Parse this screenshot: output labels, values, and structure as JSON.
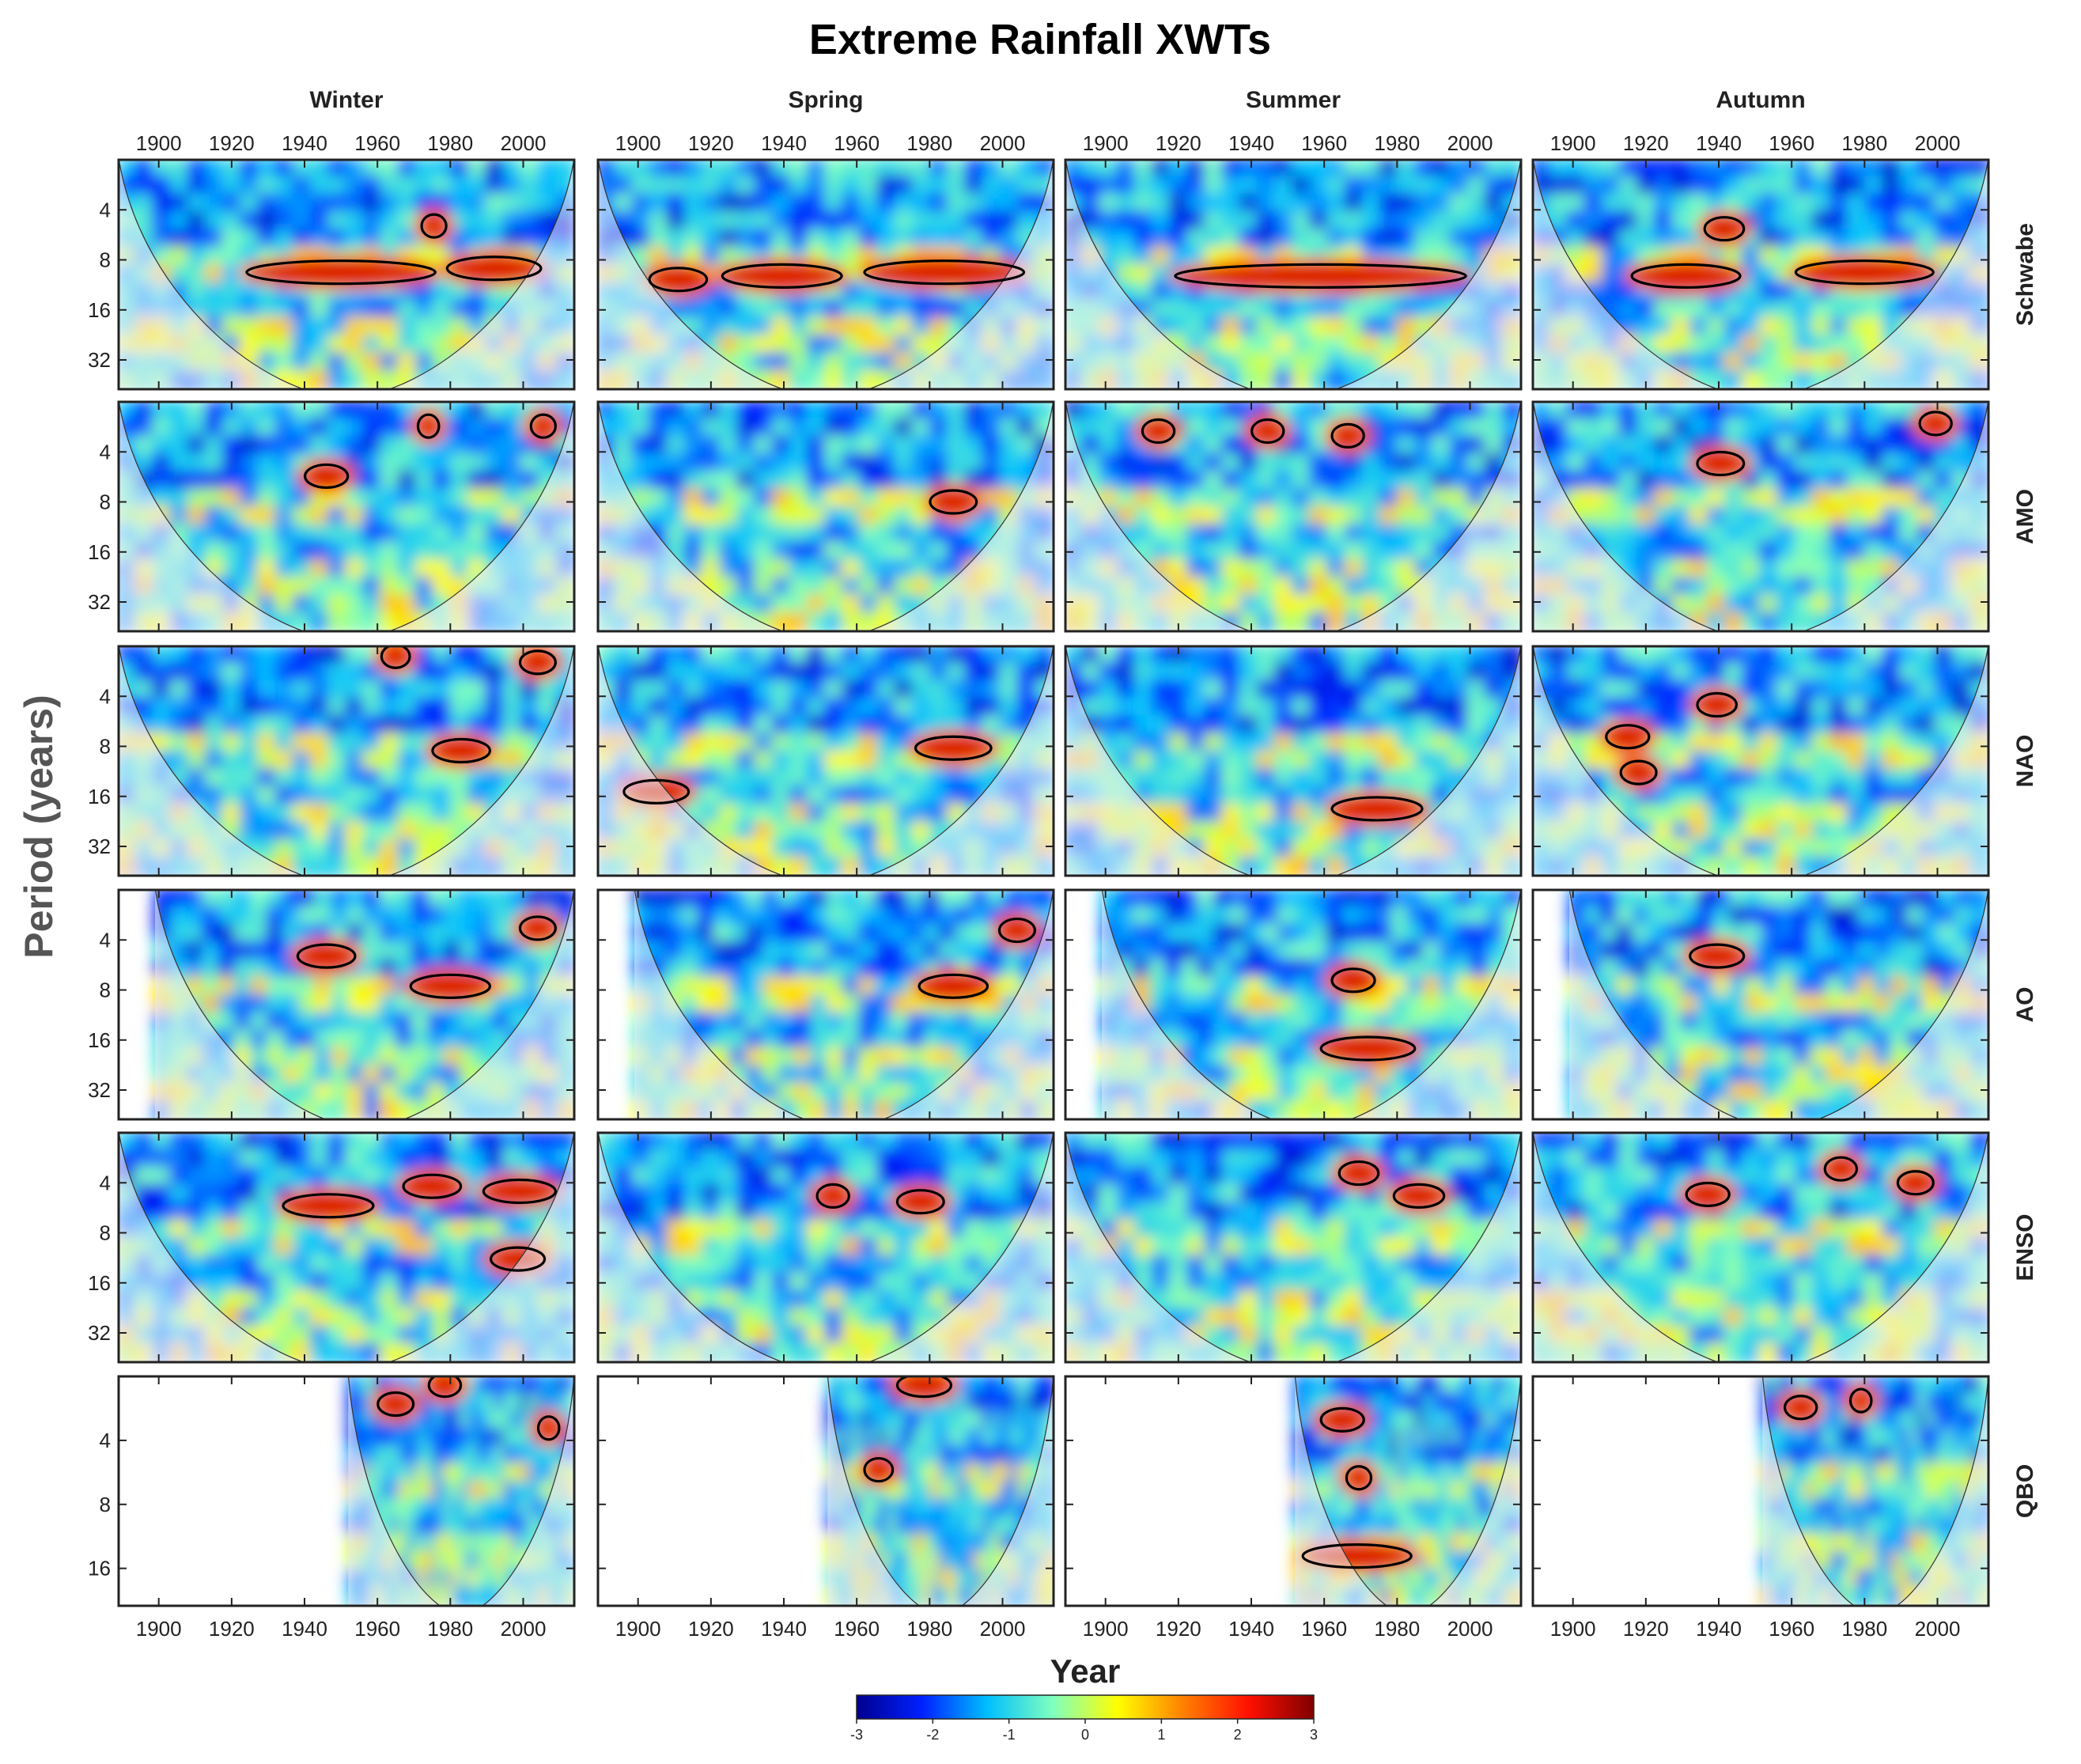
{
  "figure": {
    "title": "Extreme Rainfall XWTs",
    "xlabel": "Year",
    "ylabel": "Period (years)",
    "columns": [
      "Winter",
      "Spring",
      "Summer",
      "Autumn"
    ],
    "rows": [
      "Schwabe",
      "AMO",
      "NAO",
      "AO",
      "ENSO",
      "QBO"
    ],
    "colorbar": {
      "ticks": [
        "-3",
        "-2",
        "-1",
        "0",
        "1",
        "2",
        "3"
      ],
      "range": [
        -3,
        3
      ],
      "colors": [
        "#00008f",
        "#0020ff",
        "#00bfff",
        "#7fffbf",
        "#ffff00",
        "#ff8000",
        "#ff1000",
        "#800000"
      ]
    }
  },
  "chart_data": {
    "type": "heatmap",
    "description_units": "log2 wavelet power, colour scale -3 to 3",
    "x_ticks": [
      "1900",
      "1920",
      "1940",
      "1960",
      "1980",
      "2000"
    ],
    "xlim": [
      1889,
      2014
    ],
    "y_ticks_default": [
      "4",
      "8",
      "16",
      "32"
    ],
    "y_ticks_qbo": [
      "4",
      "8",
      "16"
    ],
    "ylim_default": [
      2,
      48
    ],
    "ylim_qbo": [
      2,
      24
    ],
    "y_scale": "log2 (inverted, short periods at top)",
    "data_start": {
      "Schwabe": 1889,
      "AMO": 1889,
      "NAO": 1889,
      "AO": 1899,
      "ENSO": 1889,
      "QBO": 1952
    },
    "significant_regions": [
      {
        "row": "Schwabe",
        "col": "Winter",
        "regions": [
          {
            "x0": 1925,
            "x1": 1975,
            "p": 9.5
          },
          {
            "x0": 1980,
            "x1": 2004,
            "p": 9
          },
          {
            "x0": 1973,
            "x1": 1978,
            "p": 5
          }
        ]
      },
      {
        "row": "Schwabe",
        "col": "Spring",
        "regions": [
          {
            "x0": 1904,
            "x1": 1918,
            "p": 10.5
          },
          {
            "x0": 1924,
            "x1": 1955,
            "p": 10
          },
          {
            "x0": 1963,
            "x1": 2005,
            "p": 9.5
          }
        ]
      },
      {
        "row": "Schwabe",
        "col": "Summer",
        "regions": [
          {
            "x0": 1920,
            "x1": 1998,
            "p": 10
          }
        ]
      },
      {
        "row": "Schwabe",
        "col": "Autumn",
        "regions": [
          {
            "x0": 1917,
            "x1": 1945,
            "p": 10
          },
          {
            "x0": 1962,
            "x1": 1998,
            "p": 9.5
          },
          {
            "x0": 1937,
            "x1": 1946,
            "p": 5.2
          }
        ]
      },
      {
        "row": "AMO",
        "col": "Winter",
        "regions": [
          {
            "x0": 1941,
            "x1": 1951,
            "p": 5.6
          },
          {
            "x0": 1972,
            "x1": 1976,
            "p": 2.8
          },
          {
            "x0": 2003,
            "x1": 2008,
            "p": 2.8
          }
        ]
      },
      {
        "row": "AMO",
        "col": "Spring",
        "regions": [
          {
            "x0": 1981,
            "x1": 1992,
            "p": 8
          }
        ]
      },
      {
        "row": "AMO",
        "col": "Summer",
        "regions": [
          {
            "x0": 1911,
            "x1": 1918,
            "p": 3
          },
          {
            "x0": 1941,
            "x1": 1948,
            "p": 3
          },
          {
            "x0": 1963,
            "x1": 1970,
            "p": 3.2
          }
        ]
      },
      {
        "row": "AMO",
        "col": "Autumn",
        "regions": [
          {
            "x0": 1935,
            "x1": 1946,
            "p": 4.7
          },
          {
            "x0": 1996,
            "x1": 2003,
            "p": 2.7
          }
        ]
      },
      {
        "row": "NAO",
        "col": "Winter",
        "regions": [
          {
            "x0": 1976,
            "x1": 1990,
            "p": 8.5
          },
          {
            "x0": 1962,
            "x1": 1968,
            "p": 2.3
          },
          {
            "x0": 2000,
            "x1": 2008,
            "p": 2.5
          }
        ]
      },
      {
        "row": "NAO",
        "col": "Spring",
        "regions": [
          {
            "x0": 1897,
            "x1": 1913,
            "p": 15
          },
          {
            "x0": 1977,
            "x1": 1996,
            "p": 8.2
          }
        ]
      },
      {
        "row": "NAO",
        "col": "Summer",
        "regions": [
          {
            "x0": 1963,
            "x1": 1986,
            "p": 19
          }
        ]
      },
      {
        "row": "NAO",
        "col": "Autumn",
        "regions": [
          {
            "x0": 1935,
            "x1": 1944,
            "p": 4.5
          },
          {
            "x0": 1910,
            "x1": 1920,
            "p": 7
          },
          {
            "x0": 1914,
            "x1": 1922,
            "p": 11.5
          }
        ]
      },
      {
        "row": "AO",
        "col": "Winter",
        "regions": [
          {
            "x0": 1939,
            "x1": 1953,
            "p": 5
          },
          {
            "x0": 1970,
            "x1": 1990,
            "p": 7.6
          },
          {
            "x0": 2000,
            "x1": 2008,
            "p": 3.4
          }
        ]
      },
      {
        "row": "AO",
        "col": "Spring",
        "regions": [
          {
            "x0": 1978,
            "x1": 1995,
            "p": 7.6
          },
          {
            "x0": 2000,
            "x1": 2008,
            "p": 3.5
          }
        ]
      },
      {
        "row": "AO",
        "col": "Summer",
        "regions": [
          {
            "x0": 1960,
            "x1": 1984,
            "p": 18
          },
          {
            "x0": 1963,
            "x1": 1973,
            "p": 7
          }
        ]
      },
      {
        "row": "AO",
        "col": "Autumn",
        "regions": [
          {
            "x0": 1933,
            "x1": 1946,
            "p": 5
          }
        ]
      },
      {
        "row": "ENSO",
        "col": "Winter",
        "regions": [
          {
            "x0": 1935,
            "x1": 1958,
            "p": 5.5
          },
          {
            "x0": 1968,
            "x1": 1982,
            "p": 4.2
          },
          {
            "x0": 1990,
            "x1": 2008,
            "p": 4.5
          },
          {
            "x0": 1992,
            "x1": 2005,
            "p": 11.5
          }
        ]
      },
      {
        "row": "ENSO",
        "col": "Spring",
        "regions": [
          {
            "x0": 1950,
            "x1": 1957,
            "p": 4.8
          },
          {
            "x0": 1972,
            "x1": 1983,
            "p": 5.2
          }
        ]
      },
      {
        "row": "ENSO",
        "col": "Summer",
        "regions": [
          {
            "x0": 1965,
            "x1": 1974,
            "p": 3.5
          },
          {
            "x0": 1980,
            "x1": 1992,
            "p": 4.8
          }
        ]
      },
      {
        "row": "ENSO",
        "col": "Autumn",
        "regions": [
          {
            "x0": 1932,
            "x1": 1942,
            "p": 4.7
          },
          {
            "x0": 1970,
            "x1": 1977,
            "p": 3.3
          },
          {
            "x0": 1990,
            "x1": 1998,
            "p": 4
          }
        ]
      },
      {
        "row": "QBO",
        "col": "Winter",
        "regions": [
          {
            "x0": 1961,
            "x1": 1969,
            "p": 2.7
          },
          {
            "x0": 1975,
            "x1": 1982,
            "p": 2.2
          },
          {
            "x0": 2005,
            "x1": 2009,
            "p": 3.5
          }
        ]
      },
      {
        "row": "QBO",
        "col": "Spring",
        "regions": [
          {
            "x0": 1972,
            "x1": 1985,
            "p": 2.2
          },
          {
            "x0": 1963,
            "x1": 1969,
            "p": 5.5
          }
        ]
      },
      {
        "row": "QBO",
        "col": "Summer",
        "regions": [
          {
            "x0": 1960,
            "x1": 1970,
            "p": 3.2
          },
          {
            "x0": 1967,
            "x1": 1972,
            "p": 6
          },
          {
            "x0": 1955,
            "x1": 1983,
            "p": 14
          }
        ]
      },
      {
        "row": "QBO",
        "col": "Autumn",
        "regions": [
          {
            "x0": 1959,
            "x1": 1966,
            "p": 2.8
          },
          {
            "x0": 1977,
            "x1": 1981,
            "p": 2.6
          }
        ]
      }
    ]
  }
}
